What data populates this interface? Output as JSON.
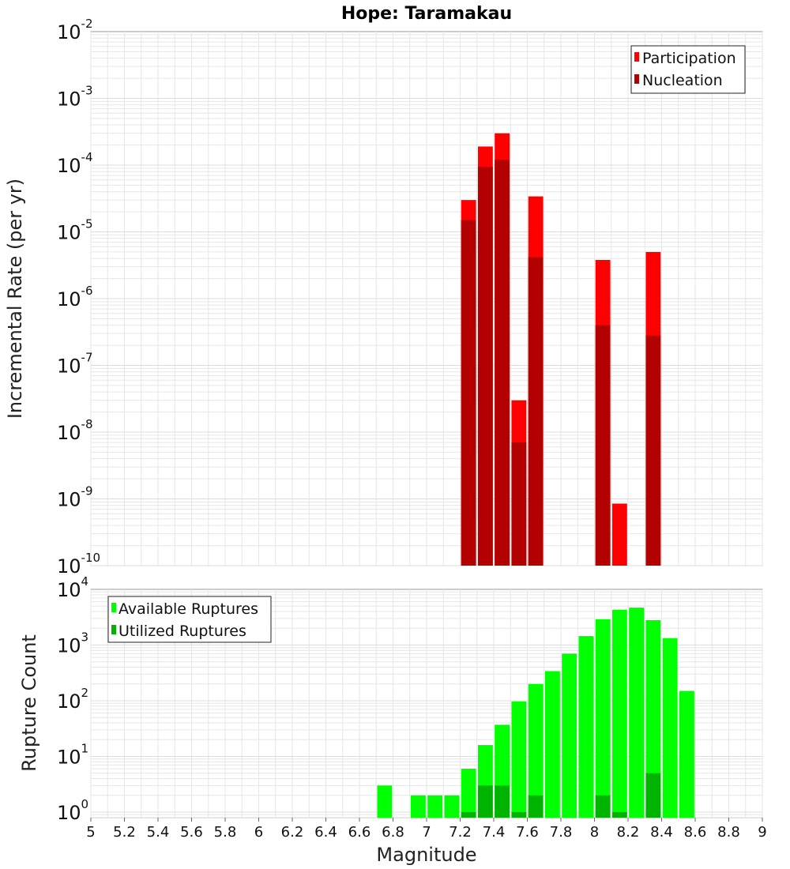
{
  "chart_data": [
    {
      "type": "bar",
      "scale": "log",
      "title": "Hope: Taramakau",
      "xlabel": "Magnitude",
      "ylabel": "Incremental Rate (per yr)",
      "xlim": [
        5,
        9
      ],
      "ylim_exp": [
        -10,
        -2
      ],
      "bin_width": 0.1,
      "legend": "top-right",
      "series": [
        {
          "name": "Participation",
          "color": "#ff0000",
          "x": [
            7.25,
            7.35,
            7.45,
            7.55,
            7.65,
            8.05,
            8.15,
            8.35
          ],
          "values": [
            3e-05,
            0.00019,
            0.0003,
            3e-08,
            3.4e-05,
            3.8e-06,
            8.5e-10,
            5e-06
          ]
        },
        {
          "name": "Nucleation",
          "color": "#b30000",
          "x": [
            7.25,
            7.35,
            7.45,
            7.55,
            7.65,
            8.05,
            8.35
          ],
          "values": [
            1.5e-05,
            9.5e-05,
            0.00012,
            7e-09,
            4.2e-06,
            4e-07,
            2.8e-07
          ]
        }
      ]
    },
    {
      "type": "bar",
      "scale": "log",
      "title": "",
      "xlabel": "Magnitude",
      "ylabel": "Rupture Count",
      "xlim": [
        5,
        9
      ],
      "ylim_exp": [
        -0.1,
        4
      ],
      "bin_width": 0.1,
      "legend": "top-left",
      "series": [
        {
          "name": "Available Ruptures",
          "color": "#00ff00",
          "x": [
            6.75,
            6.95,
            7.05,
            7.15,
            7.25,
            7.35,
            7.45,
            7.55,
            7.65,
            7.75,
            7.85,
            7.95,
            8.05,
            8.15,
            8.25,
            8.35,
            8.45,
            8.55
          ],
          "values": [
            3,
            2,
            2,
            2,
            6,
            16,
            37,
            97,
            200,
            340,
            700,
            1450,
            2900,
            4300,
            4700,
            2800,
            1330,
            150
          ]
        },
        {
          "name": "Utilized Ruptures",
          "color": "#00b300",
          "x": [
            7.25,
            7.35,
            7.45,
            7.55,
            7.65,
            8.05,
            8.15,
            8.35
          ],
          "values": [
            1,
            3,
            3,
            1,
            2,
            2,
            1,
            5
          ]
        }
      ]
    }
  ],
  "x_ticks": [
    "5",
    "5.2",
    "5.4",
    "5.6",
    "5.8",
    "6",
    "6.2",
    "6.4",
    "6.6",
    "6.8",
    "7",
    "7.2",
    "7.4",
    "7.6",
    "7.8",
    "8",
    "8.2",
    "8.4",
    "8.6",
    "8.8",
    "9"
  ],
  "top_y_ticks": [
    {
      "base": "10",
      "exp": "-2"
    },
    {
      "base": "10",
      "exp": "-3"
    },
    {
      "base": "10",
      "exp": "-4"
    },
    {
      "base": "10",
      "exp": "-5"
    },
    {
      "base": "10",
      "exp": "-6"
    },
    {
      "base": "10",
      "exp": "-7"
    },
    {
      "base": "10",
      "exp": "-8"
    },
    {
      "base": "10",
      "exp": "-9"
    },
    {
      "base": "10",
      "exp": "-10"
    }
  ],
  "bottom_y_ticks": [
    {
      "base": "10",
      "exp": "4"
    },
    {
      "base": "10",
      "exp": "3"
    },
    {
      "base": "10",
      "exp": "2"
    },
    {
      "base": "10",
      "exp": "1"
    },
    {
      "base": "10",
      "exp": "0"
    }
  ]
}
